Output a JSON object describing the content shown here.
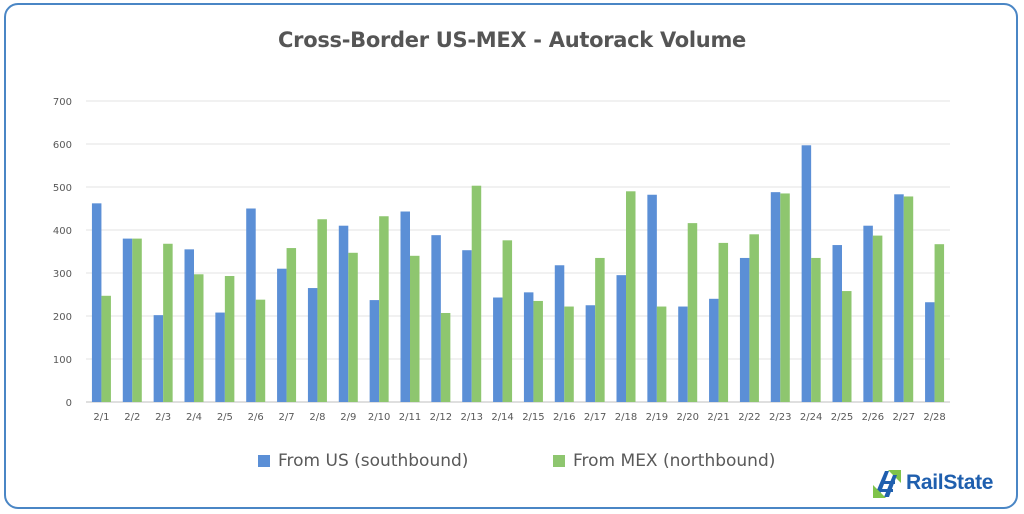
{
  "chart_data": {
    "type": "bar",
    "title": "Cross-Border US-MEX - Autorack Volume",
    "xlabel": "",
    "ylabel": "",
    "ylim": [
      0,
      700
    ],
    "yticks": [
      0,
      100,
      200,
      300,
      400,
      500,
      600,
      700
    ],
    "grid": true,
    "legend_position": "bottom",
    "categories": [
      "2/1",
      "2/2",
      "2/3",
      "2/4",
      "2/5",
      "2/6",
      "2/7",
      "2/8",
      "2/9",
      "2/10",
      "2/11",
      "2/12",
      "2/13",
      "2/14",
      "2/15",
      "2/16",
      "2/17",
      "2/18",
      "2/19",
      "2/20",
      "2/21",
      "2/22",
      "2/23",
      "2/24",
      "2/25",
      "2/26",
      "2/27",
      "2/28"
    ],
    "series": [
      {
        "name": "From US (southbound)",
        "color": "#5b8fd6",
        "values": [
          462,
          380,
          202,
          355,
          208,
          450,
          310,
          265,
          410,
          237,
          443,
          388,
          353,
          243,
          255,
          318,
          225,
          295,
          482,
          222,
          240,
          335,
          488,
          597,
          365,
          410,
          483,
          232
        ]
      },
      {
        "name": "From MEX (northbound)",
        "color": "#8ec66f",
        "values": [
          247,
          380,
          368,
          297,
          293,
          238,
          358,
          425,
          347,
          432,
          340,
          207,
          503,
          376,
          235,
          222,
          335,
          490,
          222,
          416,
          370,
          390,
          485,
          335,
          258,
          387,
          478,
          367
        ]
      }
    ]
  },
  "branding": {
    "logo_text": "RailState",
    "logo_icon": "railstate-track-icon"
  }
}
